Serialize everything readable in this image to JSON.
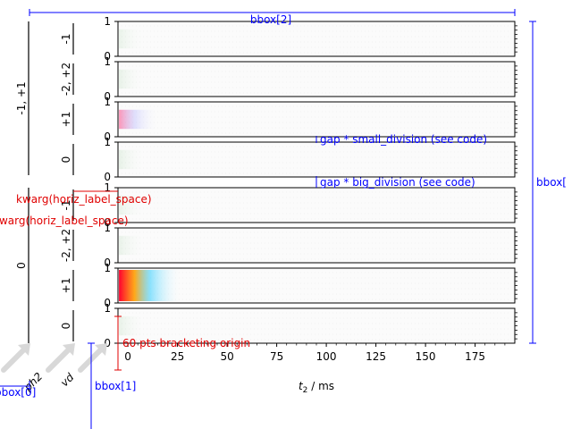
{
  "chart_data": {
    "type": "heatmap",
    "x_axis": {
      "label_prefix": "t",
      "label_sub": "2",
      "label_suffix": " / ms",
      "ticks": [
        0,
        25,
        50,
        75,
        100,
        125,
        150,
        175
      ],
      "xlim": [
        -5,
        195
      ]
    },
    "y_axis": {
      "ticks": [
        0,
        1
      ],
      "ylim": [
        0,
        1
      ]
    },
    "outer_groups": [
      {
        "label": "-1, +1"
      },
      {
        "label": "0"
      }
    ],
    "panels": [
      {
        "group": "-1, +1",
        "label": "-1",
        "intensity": 0.03
      },
      {
        "group": "-1, +1",
        "label": "-2, +2",
        "intensity": 0.06
      },
      {
        "group": "-1, +1",
        "label": "+1",
        "intensity": 0.35
      },
      {
        "group": "-1, +1",
        "label": "0",
        "intensity": 0.08
      },
      {
        "group": "0",
        "label": "-1",
        "intensity": 0.03
      },
      {
        "group": "0",
        "label": "-2, +2",
        "intensity": 0.05
      },
      {
        "group": "0",
        "label": "+1",
        "intensity": 1.0
      },
      {
        "group": "0",
        "label": "0",
        "intensity": 0.06
      }
    ],
    "level_labels": [
      "ph2",
      "vd"
    ],
    "annotations": {
      "bbox0": "bbox[0]",
      "bbox1": "bbox[1]",
      "bbox2": "bbox[2]",
      "bbox_right": "bbox[",
      "gap_small": "gap * small_division (see code)",
      "gap_big": "gap * big_division (see code)",
      "horiz_space_1": "kwarg(horiz_label_space)",
      "horiz_space_2": "kwarg(horiz_label_space)",
      "origin": "60 pts bracketing origin"
    }
  }
}
